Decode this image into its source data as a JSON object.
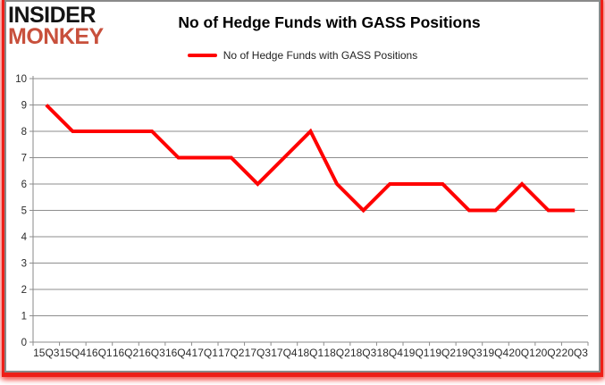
{
  "logo": {
    "line1": "INSIDER",
    "line2": "MONKEY",
    "line1_color": "#141414",
    "line2_color": "#c8503c"
  },
  "header": {
    "title": "No of Hedge Funds with GASS Positions"
  },
  "legend": {
    "label": "No of Hedge Funds with GASS Positions",
    "swatch_color": "#ff0000"
  },
  "colors": {
    "line": "#ff0000",
    "grid": "#8e8e8e",
    "axis": "#8a8a8a",
    "frame_red": "#ee1f18",
    "frame_gray": "#8a8a8a",
    "text": "#2b2b2b"
  },
  "chart_data": {
    "type": "line",
    "title": "No of Hedge Funds with GASS Positions",
    "categories": [
      "15Q3",
      "15Q4",
      "16Q1",
      "16Q2",
      "16Q3",
      "16Q4",
      "17Q1",
      "17Q2",
      "17Q3",
      "17Q4",
      "18Q1",
      "18Q2",
      "18Q3",
      "18Q4",
      "19Q1",
      "19Q2",
      "19Q3",
      "19Q4",
      "20Q1",
      "20Q2",
      "20Q3"
    ],
    "series": [
      {
        "name": "No of Hedge Funds with GASS Positions",
        "color": "#ff0000",
        "values": [
          9,
          8,
          8,
          8,
          8,
          7,
          7,
          7,
          6,
          7,
          8,
          6,
          5,
          6,
          6,
          6,
          5,
          5,
          6,
          5,
          5
        ]
      }
    ],
    "xlabel": "",
    "ylabel": "",
    "ylim": [
      0,
      10
    ],
    "ytick_step": 1,
    "grid": true,
    "legend_position": "top-center"
  }
}
